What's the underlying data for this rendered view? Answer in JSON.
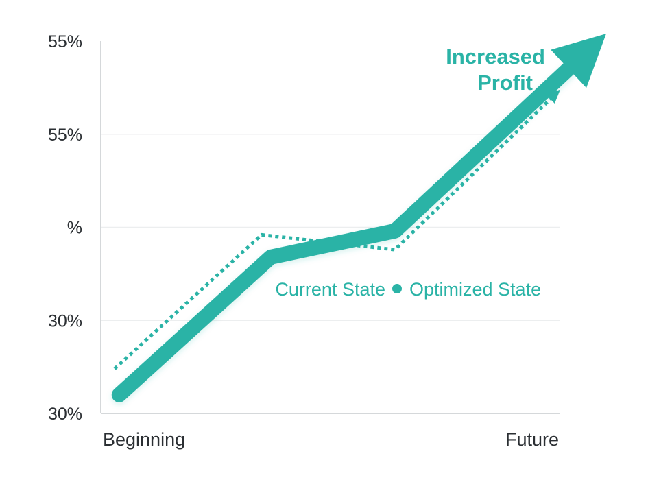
{
  "chart_data": {
    "type": "line",
    "title": "",
    "xlabel": "",
    "ylabel": "",
    "categories": [
      "Beginning",
      "Future"
    ],
    "y_tick_labels": [
      "30%",
      "30%",
      "%",
      "55%",
      "55%"
    ],
    "grid": true,
    "series": [
      {
        "name": "Current State",
        "style": "solid-arrow",
        "color": "#2ab3a6",
        "points": [
          [
            0.04,
            0.05
          ],
          [
            0.37,
            0.42
          ],
          [
            0.64,
            0.49
          ],
          [
            1.1,
            1.02
          ]
        ]
      },
      {
        "name": "Optimized State",
        "style": "dotted-arrow",
        "color": "#2ab3a6",
        "points": [
          [
            0.03,
            0.12
          ],
          [
            0.35,
            0.48
          ],
          [
            0.64,
            0.44
          ],
          [
            1.0,
            0.87
          ]
        ]
      }
    ],
    "legend": {
      "position": "center-right",
      "separator_marker": "dot"
    },
    "annotations": [
      {
        "text_lines": [
          "Increased",
          "Profit"
        ],
        "placement": "top-right"
      }
    ],
    "colors": {
      "accent": "#2ab3a6",
      "axis": "#d5d8da",
      "grid": "#eceeef",
      "text": "#2b2f33"
    }
  }
}
